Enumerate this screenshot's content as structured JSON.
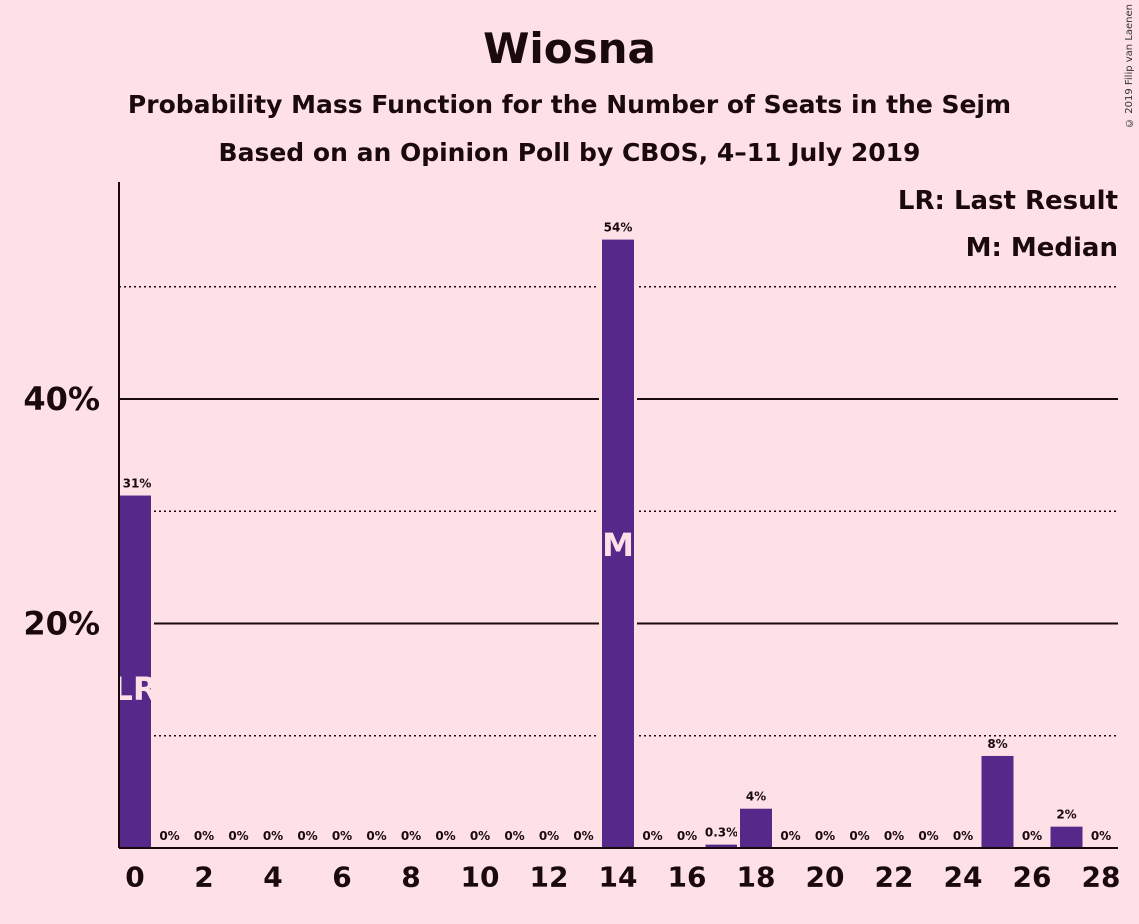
{
  "chart_data": {
    "type": "bar",
    "title": "Wiosna",
    "subtitle_lines": [
      "Probability Mass Function for the Number of Seats in the Sejm",
      "Based on an Opinion Poll by CBOS, 4–11 July 2019"
    ],
    "copyright": "© 2019 Filip van Laenen",
    "x": [
      0,
      1,
      2,
      3,
      4,
      5,
      6,
      7,
      8,
      9,
      10,
      11,
      12,
      13,
      14,
      15,
      16,
      17,
      18,
      19,
      20,
      21,
      22,
      23,
      24,
      25,
      26,
      27,
      28
    ],
    "values": [
      31.4,
      0,
      0,
      0,
      0,
      0,
      0,
      0,
      0,
      0,
      0,
      0,
      0,
      0,
      54.2,
      0,
      0,
      0.3,
      3.5,
      0,
      0,
      0,
      0,
      0,
      0,
      8.2,
      0,
      1.9,
      0
    ],
    "data_labels": [
      "31%",
      "0%",
      "0%",
      "0%",
      "0%",
      "0%",
      "0%",
      "0%",
      "0%",
      "0%",
      "0%",
      "0%",
      "0%",
      "0%",
      "54%",
      "0%",
      "0%",
      "0.3%",
      "4%",
      "0%",
      "0%",
      "0%",
      "0%",
      "0%",
      "0%",
      "8%",
      "0%",
      "2%",
      "0%"
    ],
    "x_tick_labels": [
      "0",
      "2",
      "4",
      "6",
      "8",
      "10",
      "12",
      "14",
      "16",
      "18",
      "20",
      "22",
      "24",
      "26",
      "28"
    ],
    "y_tick_labels": [
      "20%",
      "40%"
    ],
    "ylim": [
      0,
      59
    ],
    "major_gridlines": [
      20,
      40
    ],
    "minor_gridlines": [
      10,
      30,
      50
    ],
    "bar_color": "#55288a",
    "background_color": "#fde1e6",
    "markers": [
      {
        "x": 0,
        "text": "LR"
      },
      {
        "x": 14,
        "text": "M"
      }
    ],
    "legend": {
      "position": "top-right",
      "entries": [
        "LR: Last Result",
        "M: Median"
      ]
    }
  }
}
